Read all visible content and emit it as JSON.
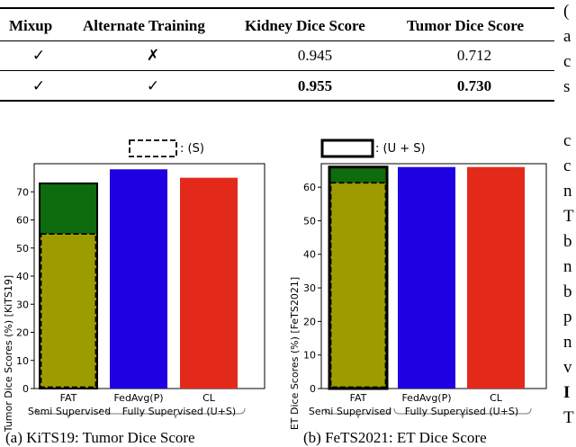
{
  "table": {
    "headers": [
      "Mixup",
      "Alternate Training",
      "Kidney Dice Score",
      "Tumor Dice Score"
    ],
    "rows": [
      {
        "mixup": "✓",
        "alternate": "✗",
        "kidney": "0.945",
        "tumor": "0.712"
      },
      {
        "mixup": "✓",
        "alternate": "✓",
        "kidney": "0.955",
        "tumor": "0.730"
      }
    ]
  },
  "side_text": [
    "(",
    "a",
    "c",
    "s",
    "c",
    "c",
    "n",
    "T",
    "b",
    "n",
    "b",
    "p",
    "n",
    "v",
    "I",
    "T"
  ],
  "figures": {
    "legend_s": ": (S)",
    "legend_us": ": (U + S)",
    "semi_label": "Semi Supervised",
    "fully_label": "Fully Supervised (U+S)",
    "caption_a": "(a) KiTS19: Tumor Dice Score",
    "caption_b": "(b) FeTS2021: ET Dice Score"
  },
  "chart_data": [
    {
      "type": "bar",
      "title": "",
      "xlabel": "",
      "ylabel": "Tumor Dice Scores (%) [KiTS19]",
      "ylim": [
        0,
        80
      ],
      "yticks": [
        0,
        10,
        20,
        30,
        40,
        50,
        60,
        70
      ],
      "categories": [
        "FAT",
        "FedAvg(P)",
        "CL"
      ],
      "series": [
        {
          "name": "(S)",
          "values": [
            55,
            null,
            null
          ]
        },
        {
          "name": "(U + S)",
          "values": [
            73,
            78,
            75
          ]
        }
      ],
      "colors": {
        "semi": "#9c9c00",
        "full_stack": "#0e6b0e",
        "fedavg": "#1f00e3",
        "cl": "#e32a1a"
      }
    },
    {
      "type": "bar",
      "title": "",
      "xlabel": "",
      "ylabel": "ET Dice Scores (%) [FeTS2021]",
      "ylim": [
        0,
        67
      ],
      "yticks": [
        0,
        10,
        20,
        30,
        40,
        50,
        60
      ],
      "categories": [
        "FAT",
        "FedAvg(P)",
        "CL"
      ],
      "series": [
        {
          "name": "(S)",
          "values": [
            61.3,
            null,
            null
          ]
        },
        {
          "name": "(U + S)",
          "values": [
            66,
            66,
            66
          ]
        }
      ],
      "colors": {
        "semi": "#9c9c00",
        "full_stack": "#0e6b0e",
        "fedavg": "#1f00e3",
        "cl": "#e32a1a"
      }
    }
  ]
}
